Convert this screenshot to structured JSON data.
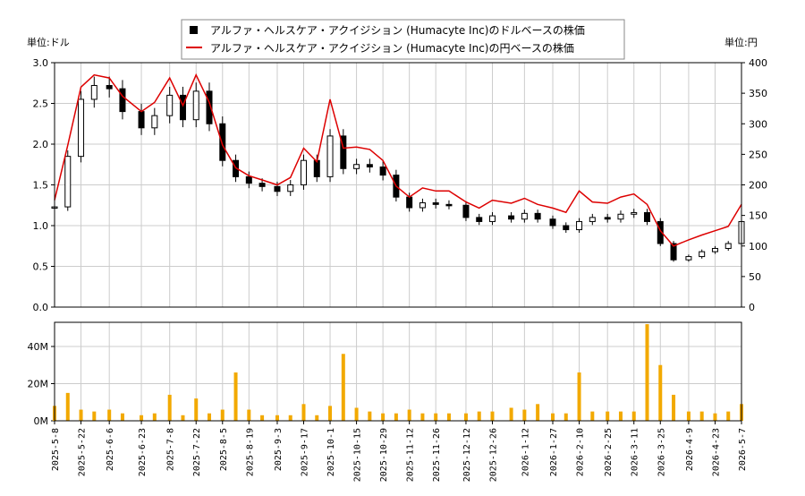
{
  "legend": {
    "usd_label": "アルファ・ヘルスケア・アクイジション (Humacyte Inc)のドルベースの株価",
    "jpy_label": "アルファ・ヘルスケア・アクイジション (Humacyte Inc)の円ベースの株価"
  },
  "axes": {
    "left_unit": "単位:ドル",
    "right_unit": "単位:円"
  },
  "colors": {
    "candle": "#000000",
    "jpy_line": "#dd0000",
    "volume": "#f2a900",
    "grid": "#cccccc"
  },
  "chart_data": [
    {
      "type": "line",
      "subtype": "candlestick with secondary yen line",
      "left_axis": {
        "ylim": [
          0,
          3.0
        ],
        "ticks": [
          "0.0",
          "0.5",
          "1.0",
          "1.5",
          "2.0",
          "2.5",
          "3.0"
        ]
      },
      "right_axis": {
        "ylim": [
          0,
          400
        ],
        "ticks": [
          "0",
          "50",
          "100",
          "150",
          "200",
          "250",
          "300",
          "350",
          "400"
        ]
      },
      "grid": true,
      "legend_position": "top-center",
      "x_range": [
        "2025-05-08",
        "2026-05-07"
      ],
      "series": [
        {
          "name": "アルファ・ヘルスケア・アクイジション (Humacyte Inc)のドルベースの株価",
          "x": [
            "2025-05-08",
            "2025-05-15",
            "2025-05-22",
            "2025-05-29",
            "2025-06-06",
            "2025-06-13",
            "2025-06-23",
            "2025-06-30",
            "2025-07-08",
            "2025-07-15",
            "2025-07-22",
            "2025-07-29",
            "2025-08-05",
            "2025-08-12",
            "2025-08-19",
            "2025-08-26",
            "2025-09-03",
            "2025-09-10",
            "2025-09-17",
            "2025-09-24",
            "2025-10-01",
            "2025-10-08",
            "2025-10-15",
            "2025-10-22",
            "2025-10-29",
            "2025-11-05",
            "2025-11-12",
            "2025-11-19",
            "2025-11-26",
            "2025-12-03",
            "2025-12-12",
            "2025-12-19",
            "2025-12-26",
            "2026-01-05",
            "2026-01-12",
            "2026-01-19",
            "2026-01-27",
            "2026-02-03",
            "2026-02-10",
            "2026-02-17",
            "2026-02-25",
            "2026-03-04",
            "2026-03-11",
            "2026-03-18",
            "2026-03-25",
            "2026-04-01",
            "2026-04-09",
            "2026-04-16",
            "2026-04-23",
            "2026-04-30",
            "2026-05-07"
          ],
          "values": [
            1.23,
            1.85,
            2.55,
            2.72,
            2.68,
            2.4,
            2.2,
            2.35,
            2.6,
            2.3,
            2.65,
            2.25,
            1.8,
            1.6,
            1.52,
            1.48,
            1.42,
            1.5,
            1.8,
            1.6,
            2.1,
            1.7,
            1.75,
            1.72,
            1.62,
            1.35,
            1.22,
            1.28,
            1.26,
            1.25,
            1.1,
            1.05,
            1.12,
            1.08,
            1.15,
            1.08,
            1.0,
            0.95,
            1.05,
            1.1,
            1.08,
            1.14,
            1.16,
            1.05,
            0.78,
            0.58,
            0.62,
            0.68,
            0.72,
            0.78,
            1.05
          ]
        },
        {
          "name": "アルファ・ヘルスケア・アクイジション (Humacyte Inc)の円ベースの株価",
          "x": [
            "2025-05-08",
            "2025-05-15",
            "2025-05-22",
            "2025-05-29",
            "2025-06-06",
            "2025-06-13",
            "2025-06-23",
            "2025-06-30",
            "2025-07-08",
            "2025-07-15",
            "2025-07-22",
            "2025-07-29",
            "2025-08-05",
            "2025-08-12",
            "2025-08-19",
            "2025-08-26",
            "2025-09-03",
            "2025-09-10",
            "2025-09-17",
            "2025-09-24",
            "2025-10-01",
            "2025-10-08",
            "2025-10-15",
            "2025-10-22",
            "2025-10-29",
            "2025-11-05",
            "2025-11-12",
            "2025-11-19",
            "2025-11-26",
            "2025-12-03",
            "2025-12-12",
            "2025-12-19",
            "2025-12-26",
            "2026-01-05",
            "2026-01-12",
            "2026-01-19",
            "2026-01-27",
            "2026-02-03",
            "2026-02-10",
            "2026-02-17",
            "2026-02-25",
            "2026-03-04",
            "2026-03-11",
            "2026-03-18",
            "2026-03-25",
            "2026-04-01",
            "2026-04-09",
            "2026-04-16",
            "2026-04-23",
            "2026-04-30",
            "2026-05-07"
          ],
          "values": [
            175,
            265,
            360,
            380,
            375,
            345,
            320,
            335,
            375,
            330,
            380,
            335,
            265,
            228,
            215,
            208,
            200,
            212,
            260,
            238,
            340,
            260,
            262,
            258,
            240,
            198,
            180,
            195,
            190,
            190,
            172,
            162,
            175,
            170,
            178,
            168,
            162,
            155,
            190,
            172,
            170,
            180,
            185,
            168,
            125,
            100,
            110,
            118,
            125,
            132,
            168
          ]
        }
      ]
    },
    {
      "type": "bar",
      "ylim": [
        0,
        53000000
      ],
      "ticks": [
        "0M",
        "20M",
        "40M"
      ],
      "x_ticks": [
        "2025-5-8",
        "2025-5-22",
        "2025-6-6",
        "2025-6-23",
        "2025-7-8",
        "2025-7-22",
        "2025-8-5",
        "2025-8-19",
        "2025-9-3",
        "2025-9-17",
        "2025-10-1",
        "2025-10-15",
        "2025-10-29",
        "2025-11-12",
        "2025-11-26",
        "2025-12-12",
        "2025-12-26",
        "2026-1-12",
        "2026-1-27",
        "2026-2-10",
        "2026-2-25",
        "2026-3-11",
        "2026-3-25",
        "2026-4-9",
        "2026-4-23",
        "2026-5-7"
      ],
      "x": [
        "2025-05-08",
        "2025-05-15",
        "2025-05-22",
        "2025-05-29",
        "2025-06-06",
        "2025-06-13",
        "2025-06-23",
        "2025-06-30",
        "2025-07-08",
        "2025-07-15",
        "2025-07-22",
        "2025-07-29",
        "2025-08-05",
        "2025-08-12",
        "2025-08-19",
        "2025-08-26",
        "2025-09-03",
        "2025-09-10",
        "2025-09-17",
        "2025-09-24",
        "2025-10-01",
        "2025-10-08",
        "2025-10-15",
        "2025-10-22",
        "2025-10-29",
        "2025-11-05",
        "2025-11-12",
        "2025-11-19",
        "2025-11-26",
        "2025-12-03",
        "2025-12-12",
        "2025-12-19",
        "2025-12-26",
        "2026-01-05",
        "2026-01-12",
        "2026-01-19",
        "2026-01-27",
        "2026-02-03",
        "2026-02-10",
        "2026-02-17",
        "2026-02-25",
        "2026-03-04",
        "2026-03-11",
        "2026-03-18",
        "2026-03-25",
        "2026-04-01",
        "2026-04-09",
        "2026-04-16",
        "2026-04-23",
        "2026-04-30",
        "2026-05-07"
      ],
      "values": [
        8000000,
        15000000,
        6000000,
        5000000,
        6000000,
        4000000,
        3000000,
        4000000,
        14000000,
        3000000,
        12000000,
        4000000,
        6000000,
        26000000,
        6000000,
        3000000,
        3000000,
        3000000,
        9000000,
        3000000,
        8000000,
        36000000,
        7000000,
        5000000,
        4000000,
        4000000,
        6000000,
        4000000,
        4000000,
        4000000,
        4000000,
        5000000,
        5000000,
        7000000,
        6000000,
        9000000,
        4000000,
        4000000,
        26000000,
        5000000,
        5000000,
        5000000,
        5000000,
        52000000,
        30000000,
        14000000,
        5000000,
        5000000,
        4000000,
        5000000,
        9000000
      ]
    }
  ]
}
